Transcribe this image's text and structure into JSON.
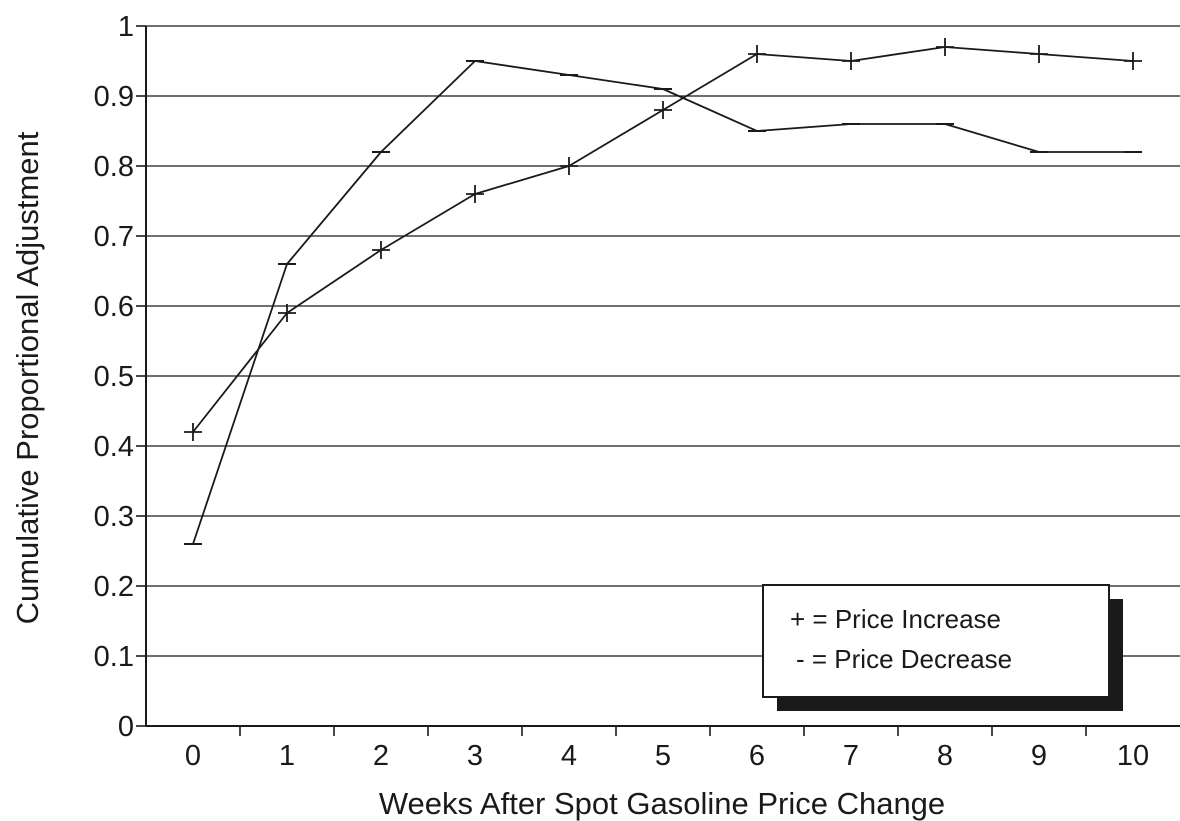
{
  "chart_data": {
    "type": "line",
    "title": "",
    "xlabel": "Weeks After Spot Gasoline Price Change",
    "ylabel": "Cumulative Proportional Adjustment",
    "x": [
      0,
      1,
      2,
      3,
      4,
      5,
      6,
      7,
      8,
      9,
      10
    ],
    "xlim": [
      -0.5,
      10.5
    ],
    "ylim": [
      0,
      1
    ],
    "x_ticks": [
      "0",
      "1",
      "2",
      "3",
      "4",
      "5",
      "6",
      "7",
      "8",
      "9",
      "10"
    ],
    "y_ticks": [
      "0",
      "0.1",
      "0.2",
      "0.3",
      "0.4",
      "0.5",
      "0.6",
      "0.7",
      "0.8",
      "0.9",
      "1"
    ],
    "grid": "horizontal",
    "legend_position": "bottom-right",
    "series": [
      {
        "key": "increase",
        "marker": "+",
        "legend_label": "+ = Price Increase",
        "values": [
          0.42,
          0.59,
          0.68,
          0.76,
          0.8,
          0.88,
          0.96,
          0.95,
          0.97,
          0.96,
          0.95
        ]
      },
      {
        "key": "decrease",
        "marker": "-",
        "legend_label": "- = Price Decrease",
        "values": [
          0.26,
          0.66,
          0.82,
          0.95,
          0.93,
          0.91,
          0.85,
          0.86,
          0.86,
          0.82,
          0.82
        ]
      }
    ],
    "colors": {
      "line": "#1a1a1a",
      "grid": "#1a1a1a",
      "legend_shadow": "#1a1a1a",
      "background": "#ffffff"
    }
  }
}
